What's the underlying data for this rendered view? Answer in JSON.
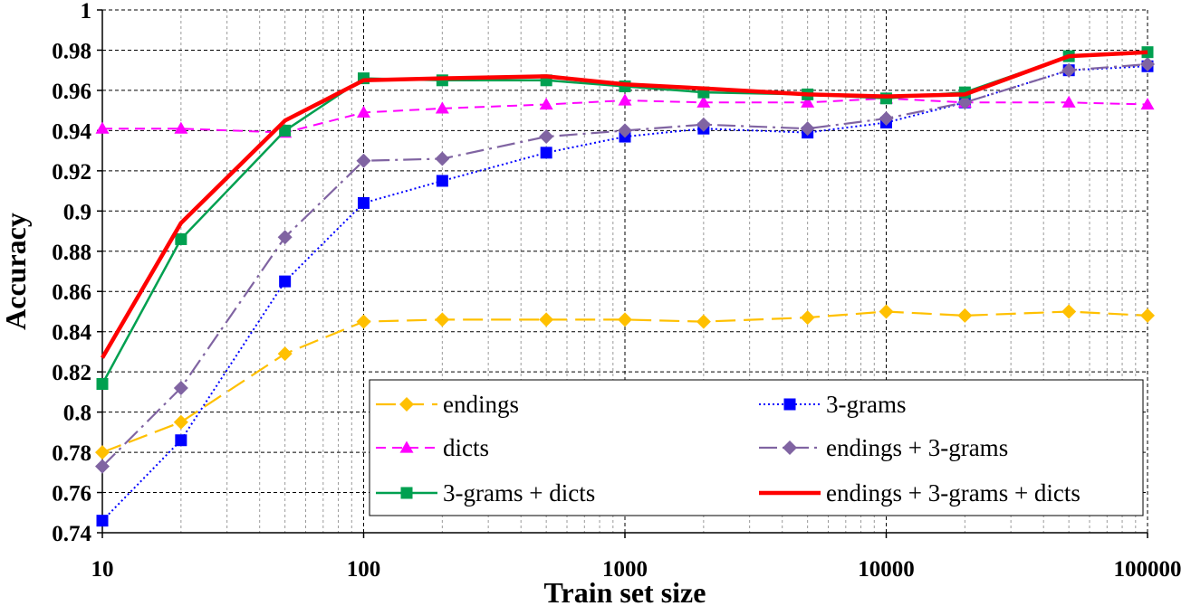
{
  "chart_data": {
    "type": "line",
    "xlabel": "Train set size",
    "ylabel": "Accuracy",
    "xscale": "log",
    "xlim": [
      10,
      100000
    ],
    "ylim": [
      0.74,
      1.0
    ],
    "x_ticks": [
      "10",
      "100",
      "1000",
      "10000",
      "100000"
    ],
    "y_ticks": [
      "0.74",
      "0.76",
      "0.78",
      "0.8",
      "0.82",
      "0.84",
      "0.86",
      "0.88",
      "0.9",
      "0.92",
      "0.94",
      "0.96",
      "0.98",
      "1"
    ],
    "grid": true,
    "legend_position": "bottom-right",
    "x": [
      10,
      20,
      50,
      100,
      200,
      500,
      1000,
      2000,
      5000,
      10000,
      20000,
      50000,
      100000
    ],
    "series": [
      {
        "name": "endings",
        "color": "#FFC000",
        "dash": "long-dash",
        "marker": "diamond",
        "values": [
          0.78,
          0.795,
          0.829,
          0.845,
          0.846,
          0.846,
          0.846,
          0.845,
          0.847,
          0.85,
          0.848,
          0.85,
          0.848
        ]
      },
      {
        "name": "3-grams",
        "color": "#0000FF",
        "dash": "dotted",
        "marker": "square",
        "values": [
          0.746,
          0.786,
          0.865,
          0.904,
          0.915,
          0.929,
          0.937,
          0.941,
          0.939,
          0.944,
          0.954,
          0.97,
          0.972
        ]
      },
      {
        "name": "dicts",
        "color": "#FF00FF",
        "dash": "dashed",
        "marker": "triangle",
        "values": [
          0.941,
          0.941,
          0.939,
          0.949,
          0.951,
          0.953,
          0.955,
          0.954,
          0.954,
          0.956,
          0.954,
          0.954,
          0.953
        ]
      },
      {
        "name": "endings + 3-grams",
        "color": "#8064A2",
        "dash": "dash-dot",
        "marker": "diamond",
        "values": [
          0.773,
          0.812,
          0.887,
          0.925,
          0.926,
          0.937,
          0.94,
          0.943,
          0.941,
          0.946,
          0.954,
          0.97,
          0.973
        ]
      },
      {
        "name": "3-grams + dicts",
        "color": "#00A050",
        "dash": "solid",
        "marker": "square",
        "values": [
          0.814,
          0.886,
          0.94,
          0.966,
          0.965,
          0.965,
          0.962,
          0.959,
          0.958,
          0.956,
          0.959,
          0.977,
          0.979
        ]
      },
      {
        "name": "endings + 3-grams + dicts",
        "color": "#FF0000",
        "dash": "solid-thick",
        "marker": "none",
        "values": [
          0.827,
          0.894,
          0.945,
          0.965,
          0.966,
          0.967,
          0.963,
          0.961,
          0.958,
          0.957,
          0.958,
          0.977,
          0.979
        ]
      }
    ]
  }
}
